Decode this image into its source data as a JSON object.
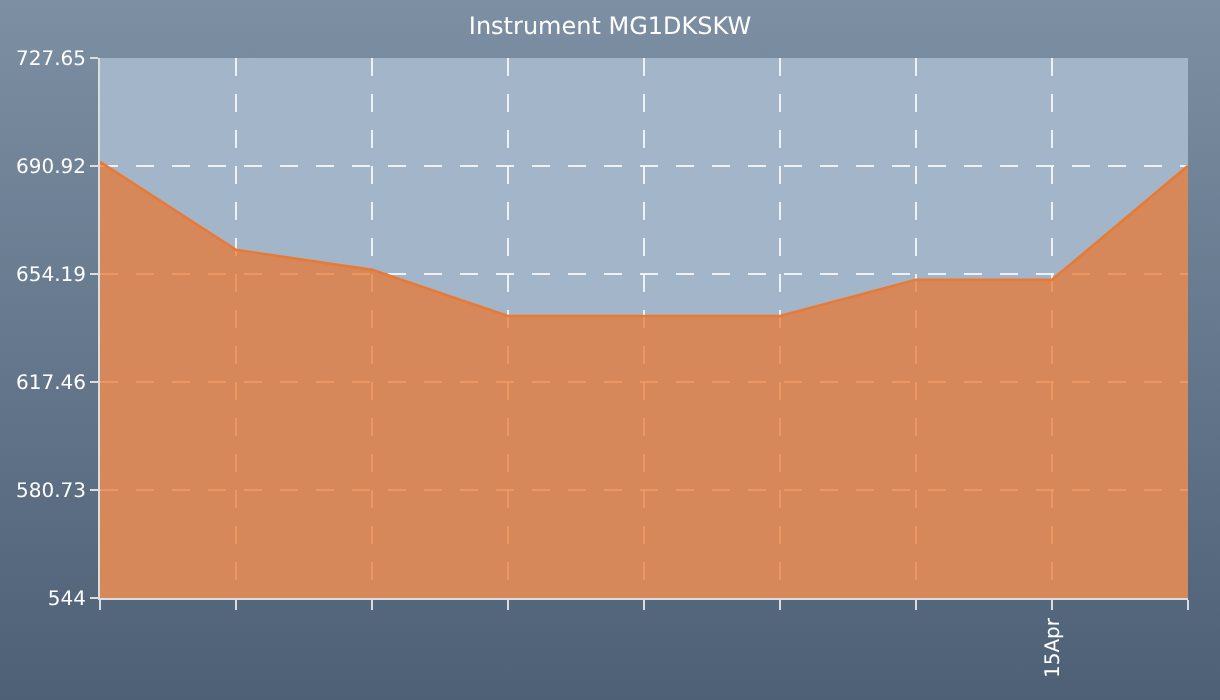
{
  "chart_data": {
    "type": "area",
    "title": "Instrument MG1DKSKW",
    "categories": [
      null,
      null,
      null,
      null,
      null,
      null,
      null,
      "15Apr",
      null
    ],
    "series": [
      {
        "color": "#e87a35",
        "values": [
          692.3,
          662.4,
          655.6,
          639.9,
          639.9,
          639.9,
          652.2,
          652.2,
          691.0
        ]
      }
    ],
    "ylim": [
      544,
      727.65
    ],
    "yticks": [
      544,
      580.73,
      617.46,
      654.19,
      690.92,
      727.65
    ],
    "grid": true
  }
}
